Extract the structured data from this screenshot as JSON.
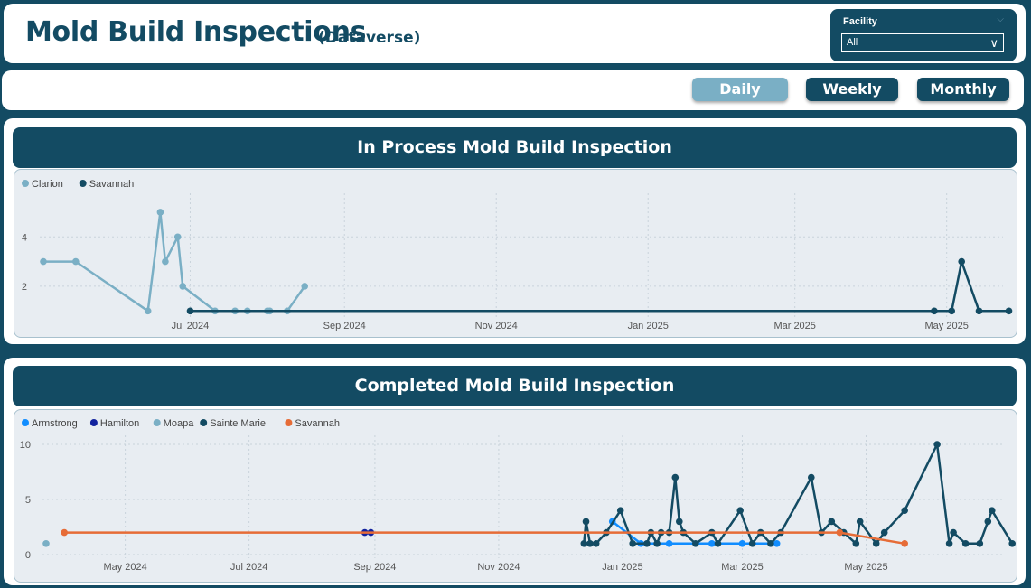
{
  "header": {
    "title": "Mold Build Inspections",
    "subtitle": "(Dataverse)"
  },
  "facility_filter": {
    "label": "Facility",
    "value": "All"
  },
  "period_buttons": {
    "daily": "Daily",
    "weekly": "Weekly",
    "monthly": "Monthly",
    "selected": "Daily"
  },
  "colors": {
    "brand": "#134b63",
    "selected_button": "#7aafc5",
    "plot_background": "#e8edf2"
  },
  "chart_data": [
    {
      "type": "line",
      "title": "In Process Mold Build Inspection",
      "x_axis": {
        "type": "date",
        "range": [
          "2024-05-03",
          "2025-05-20"
        ],
        "ticks": [
          [
            "2024-07-01",
            "Jul 2024"
          ],
          [
            "2024-09-01",
            "Sep 2024"
          ],
          [
            "2024-11-01",
            "Nov 2024"
          ],
          [
            "2025-01-01",
            "Jan 2025"
          ],
          [
            "2025-03-01",
            "Mar 2025"
          ],
          [
            "2025-05-01",
            "May 2025"
          ]
        ]
      },
      "y_axis": {
        "range": [
          0.9,
          5.4
        ],
        "ticks": [
          2,
          4
        ]
      },
      "grid": true,
      "legend": "top-left",
      "series": [
        {
          "name": "Clarion",
          "color": "#7aafc5",
          "points": [
            [
              "2024-05-03",
              3
            ],
            [
              "2024-05-16",
              3
            ],
            [
              "2024-06-14",
              1
            ],
            [
              "2024-06-19",
              5
            ],
            [
              "2024-06-21",
              3
            ],
            [
              "2024-06-26",
              4
            ],
            [
              "2024-06-28",
              2
            ],
            [
              "2024-07-11",
              1
            ],
            [
              "2024-07-19",
              1
            ],
            [
              "2024-07-24",
              1
            ],
            [
              "2024-08-01",
              1
            ],
            [
              "2024-08-02",
              1
            ],
            [
              "2024-08-09",
              1
            ],
            [
              "2024-08-16",
              2
            ]
          ]
        },
        {
          "name": "Savannah",
          "color": "#134b63",
          "points": [
            [
              "2024-07-01",
              1
            ],
            [
              "2025-04-26",
              1
            ],
            [
              "2025-05-03",
              1
            ],
            [
              "2025-05-07",
              3
            ],
            [
              "2025-05-14",
              1
            ],
            [
              "2025-05-26",
              1
            ]
          ]
        }
      ]
    },
    {
      "type": "line",
      "title": "Completed Mold Build Inspection",
      "x_axis": {
        "type": "date",
        "range": [
          "2024-03-23",
          "2025-07-03"
        ],
        "ticks": [
          [
            "2024-05-01",
            "May 2024"
          ],
          [
            "2024-07-01",
            "Jul 2024"
          ],
          [
            "2024-09-01",
            "Sep 2024"
          ],
          [
            "2024-11-01",
            "Nov 2024"
          ],
          [
            "2025-01-01",
            "Jan 2025"
          ],
          [
            "2025-03-01",
            "Mar 2025"
          ],
          [
            "2025-05-01",
            "May 2025"
          ]
        ]
      },
      "y_axis": {
        "range": [
          0,
          10
        ],
        "ticks": [
          0,
          5,
          10
        ]
      },
      "grid": true,
      "legend": "top-left",
      "series": [
        {
          "name": "Armstrong",
          "color": "#118dff",
          "points": [
            [
              "2024-12-27",
              3
            ],
            [
              "2025-01-10",
              1
            ],
            [
              "2025-01-24",
              1
            ],
            [
              "2025-02-14",
              1
            ],
            [
              "2025-03-01",
              1
            ],
            [
              "2025-03-18",
              1
            ]
          ]
        },
        {
          "name": "Hamilton",
          "color": "#12239e",
          "points": [
            [
              "2024-08-27",
              2
            ],
            [
              "2024-08-30",
              2
            ]
          ]
        },
        {
          "name": "Moapa",
          "color": "#7aafc5",
          "points": [
            [
              "2024-03-23",
              1
            ]
          ]
        },
        {
          "name": "Sainte Marie",
          "color": "#134b63",
          "points": [
            [
              "2024-12-13",
              1
            ],
            [
              "2024-12-14",
              3
            ],
            [
              "2024-12-16",
              1
            ],
            [
              "2024-12-19",
              1
            ],
            [
              "2024-12-24",
              2
            ],
            [
              "2024-12-31",
              4
            ],
            [
              "2025-01-06",
              1
            ],
            [
              "2025-01-13",
              1
            ],
            [
              "2025-01-15",
              2
            ],
            [
              "2025-01-18",
              1
            ],
            [
              "2025-01-20",
              2
            ],
            [
              "2025-01-24",
              2
            ],
            [
              "2025-01-27",
              7
            ],
            [
              "2025-01-29",
              3
            ],
            [
              "2025-01-31",
              2
            ],
            [
              "2025-02-06",
              1
            ],
            [
              "2025-02-14",
              2
            ],
            [
              "2025-02-17",
              1
            ],
            [
              "2025-02-28",
              4
            ],
            [
              "2025-03-06",
              1
            ],
            [
              "2025-03-10",
              2
            ],
            [
              "2025-03-15",
              1
            ],
            [
              "2025-03-20",
              2
            ],
            [
              "2025-04-04",
              7
            ],
            [
              "2025-04-09",
              2
            ],
            [
              "2025-04-14",
              3
            ],
            [
              "2025-04-20",
              2
            ],
            [
              "2025-04-26",
              1
            ],
            [
              "2025-04-28",
              3
            ],
            [
              "2025-05-06",
              1
            ],
            [
              "2025-05-10",
              2
            ],
            [
              "2025-05-20",
              4
            ],
            [
              "2025-06-05",
              10
            ],
            [
              "2025-06-11",
              1
            ],
            [
              "2025-06-13",
              2
            ],
            [
              "2025-06-19",
              1
            ],
            [
              "2025-06-26",
              1
            ],
            [
              "2025-06-30",
              3
            ],
            [
              "2025-07-02",
              4
            ],
            [
              "2025-07-12",
              1
            ]
          ]
        },
        {
          "name": "Savannah",
          "color": "#e66c37",
          "points": [
            [
              "2024-04-01",
              2
            ],
            [
              "2025-04-18",
              2
            ],
            [
              "2025-05-20",
              1
            ]
          ]
        }
      ]
    }
  ]
}
